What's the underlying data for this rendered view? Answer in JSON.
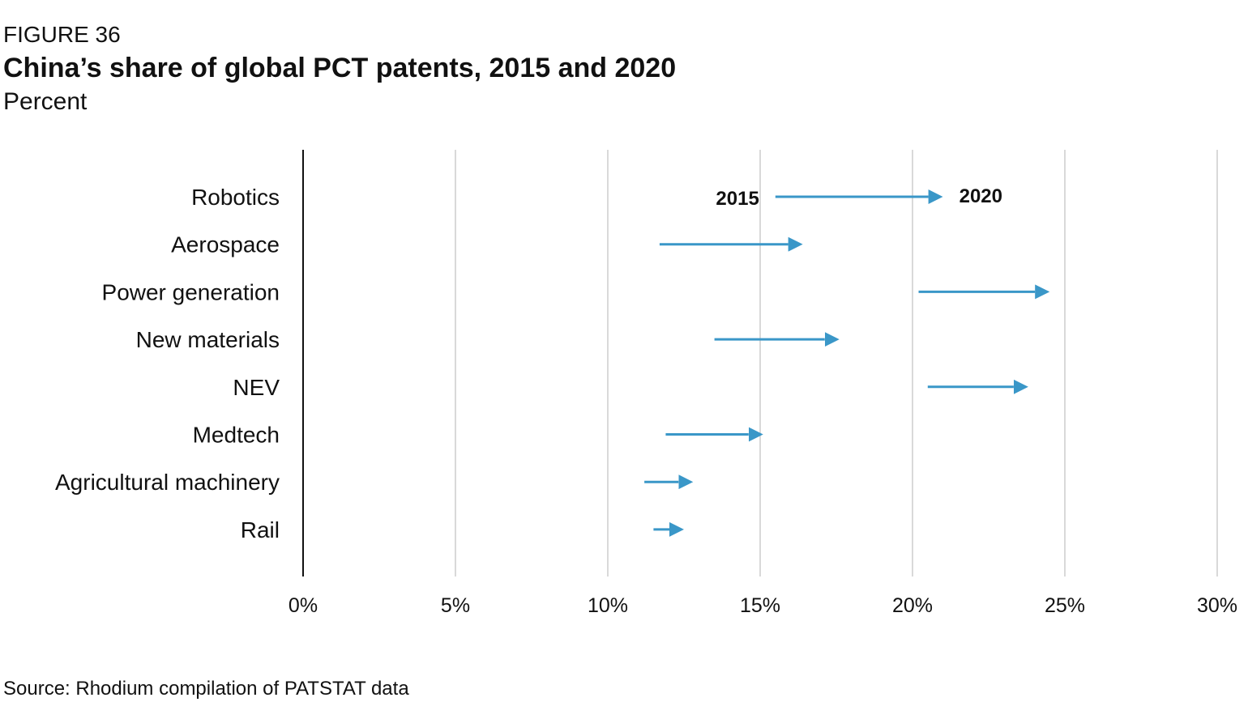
{
  "figure_label": "FIGURE 36",
  "title": "China’s share of global PCT patents, 2015 and 2020",
  "subtitle": "Percent",
  "source": "Source: Rhodium compilation of PATSTAT data",
  "colors": {
    "arrow": "#3a97c8",
    "grid": "#d9d9d9",
    "axis": "#111111",
    "text": "#111111"
  },
  "chart_data": {
    "type": "arrow",
    "categories": [
      "Robotics",
      "Aerospace",
      "Power generation",
      "New materials",
      "NEV",
      "Medtech",
      "Agricultural machinery",
      "Rail"
    ],
    "series": [
      {
        "name": "2015",
        "values": [
          15.5,
          11.7,
          20.2,
          13.5,
          20.5,
          11.9,
          11.2,
          11.5
        ]
      },
      {
        "name": "2020",
        "values": [
          21.0,
          16.4,
          24.5,
          17.6,
          23.8,
          15.1,
          12.8,
          12.5
        ]
      }
    ],
    "x_ticks": [
      "0%",
      "5%",
      "10%",
      "15%",
      "20%",
      "25%",
      "30%"
    ],
    "x_tick_values": [
      0,
      5,
      10,
      15,
      20,
      25,
      30
    ],
    "xlim": [
      0,
      30
    ],
    "grid": true,
    "annotations": {
      "start_label": "2015",
      "end_label": "2020"
    }
  }
}
